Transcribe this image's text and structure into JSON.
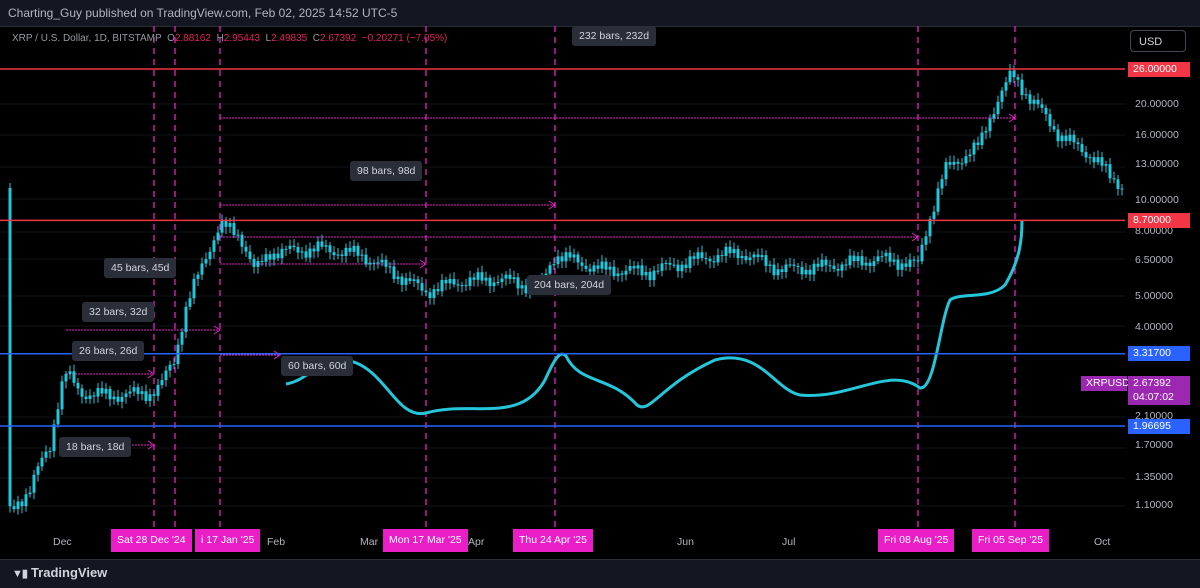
{
  "header": {
    "publisher": "Charting_Guy published on TradingView.com, Feb 02, 2025 14:52 UTC-5"
  },
  "footer": {
    "brand": "TradingView"
  },
  "currency_button": "USD",
  "legend": {
    "symbol": "XRP / U.S. Dollar, 1D, BITSTAMP",
    "o_label": "O",
    "o": "2.88162",
    "h_label": "H",
    "h": "2.95443",
    "l_label": "L",
    "l": "2.49835",
    "c_label": "C",
    "c": "2.67392",
    "chg": "−0.20271 (−7.05%)"
  },
  "colors": {
    "candle": "#26c6da",
    "hline_red": "#f23645",
    "hline_blue": "#2962ff",
    "vline": "#e91ec7",
    "projection": "#26c6da",
    "range": "#e91ec7"
  },
  "chart_data": {
    "type": "candlestick",
    "symbol": "XRPUSD",
    "yscale": "log",
    "last_price": "2.67392",
    "countdown": "04:07:02",
    "price_axis": [
      "26.00000",
      "20.00000",
      "16.00000",
      "13.00000",
      "10.00000",
      "8.70000",
      "8.00000",
      "6.50000",
      "5.00000",
      "4.00000",
      "3.31700",
      "2.67392",
      "2.10000",
      "1.96695",
      "1.70000",
      "1.35000",
      "1.10000"
    ],
    "x_tick_labels": [
      "Dec",
      "Feb",
      "Mar",
      "Apr",
      "Jun",
      "Jul",
      "Oct"
    ],
    "horizontal_levels": [
      {
        "value": 26.0,
        "label": "26.00000",
        "color": "red"
      },
      {
        "value": 8.7,
        "label": "8.70000",
        "color": "red"
      },
      {
        "value": 3.317,
        "label": "3.31700",
        "color": "blue"
      },
      {
        "value": 1.96695,
        "label": "1.96695",
        "color": "blue"
      }
    ],
    "vertical_markers": [
      "Sat 28 Dec '24",
      "i 17 Jan '25",
      "Mon 17 Mar '25",
      "Thu 24 Apr '25",
      "Fri 08 Aug '25",
      "Fri 05 Sep '25"
    ],
    "range_labels": [
      "232 bars, 232d",
      "98 bars, 98d",
      "45 bars, 45d",
      "32 bars, 32d",
      "26 bars, 26d",
      "18 bars, 18d",
      "60 bars, 60d",
      "204 bars, 204d"
    ]
  }
}
